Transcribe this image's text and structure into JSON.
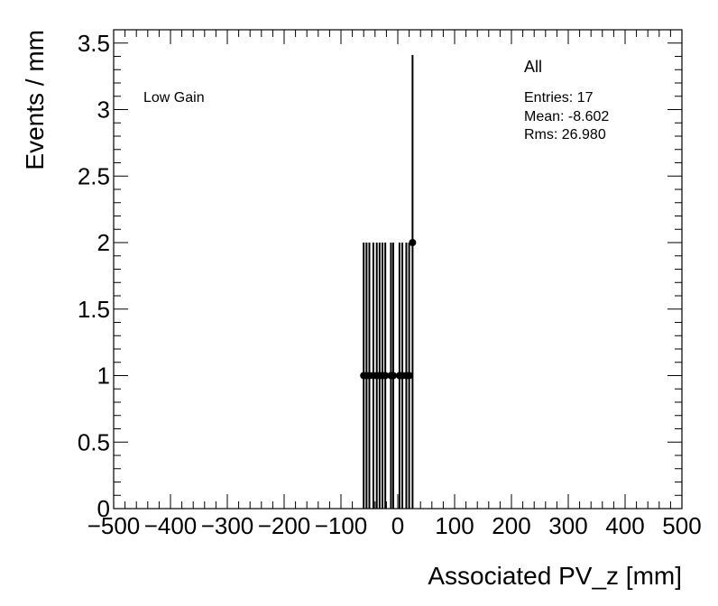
{
  "chart_data": {
    "type": "scatter",
    "xlabel": "Associated PV_z [mm]",
    "ylabel": "Events / mm",
    "xlim": [
      -500,
      500
    ],
    "ylim": [
      0,
      3.6
    ],
    "xticks": [
      {
        "v": -500,
        "label": "−500"
      },
      {
        "v": -400,
        "label": "−400"
      },
      {
        "v": -300,
        "label": "−300"
      },
      {
        "v": -200,
        "label": "−200"
      },
      {
        "v": -100,
        "label": "−100"
      },
      {
        "v": 0,
        "label": "0"
      },
      {
        "v": 100,
        "label": "100"
      },
      {
        "v": 200,
        "label": "200"
      },
      {
        "v": 300,
        "label": "300"
      },
      {
        "v": 400,
        "label": "400"
      },
      {
        "v": 500,
        "label": "500"
      }
    ],
    "yticks": [
      {
        "v": 0,
        "label": "0"
      },
      {
        "v": 0.5,
        "label": "0.5"
      },
      {
        "v": 1,
        "label": "1"
      },
      {
        "v": 1.5,
        "label": "1.5"
      },
      {
        "v": 2,
        "label": "2"
      },
      {
        "v": 2.5,
        "label": "2.5"
      },
      {
        "v": 3,
        "label": "3"
      },
      {
        "v": 3.5,
        "label": "3.5"
      }
    ],
    "points": [
      {
        "x": -60,
        "y": 1,
        "err_low": 1,
        "err_high": 1
      },
      {
        "x": -55,
        "y": 1,
        "err_low": 1,
        "err_high": 1
      },
      {
        "x": -50,
        "y": 1,
        "err_low": 1,
        "err_high": 1
      },
      {
        "x": -43,
        "y": 1,
        "err_low": 1,
        "err_high": 1
      },
      {
        "x": -37,
        "y": 1,
        "err_low": 1,
        "err_high": 1
      },
      {
        "x": -32,
        "y": 1,
        "err_low": 1,
        "err_high": 1
      },
      {
        "x": -27,
        "y": 1,
        "err_low": 1,
        "err_high": 1
      },
      {
        "x": -22,
        "y": 1,
        "err_low": 1,
        "err_high": 1
      },
      {
        "x": -12,
        "y": 1,
        "err_low": 1,
        "err_high": 1
      },
      {
        "x": -8,
        "y": 1,
        "err_low": 1,
        "err_high": 1
      },
      {
        "x": 3,
        "y": 1,
        "err_low": 1,
        "err_high": 1
      },
      {
        "x": 8,
        "y": 1,
        "err_low": 1,
        "err_high": 1
      },
      {
        "x": 15,
        "y": 1,
        "err_low": 1,
        "err_high": 1
      },
      {
        "x": 20,
        "y": 1,
        "err_low": 1,
        "err_high": 1
      },
      {
        "x": 26,
        "y": 2,
        "err_low": 2,
        "err_high": 1.41
      }
    ],
    "grid": false,
    "legend": "none"
  },
  "stats": {
    "title": "All",
    "entries": "Entries: 17",
    "mean": "Mean: -8.602",
    "rms": "Rms: 26.980"
  },
  "annotation": "Low Gain"
}
